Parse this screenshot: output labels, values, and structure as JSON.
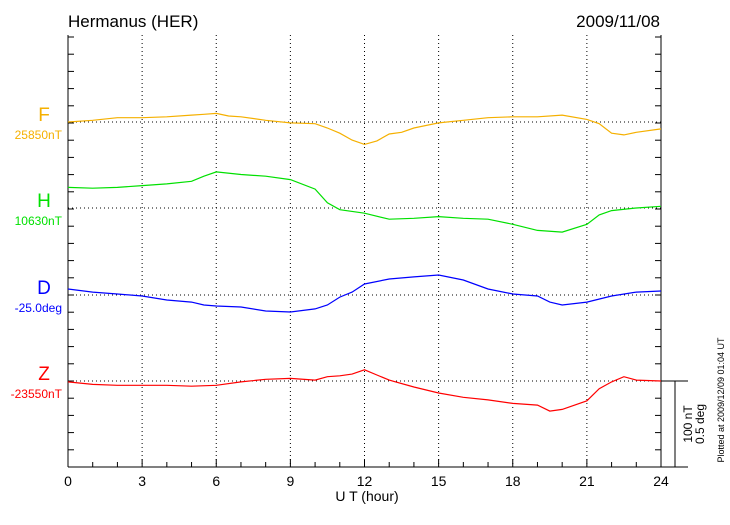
{
  "chart_data": {
    "type": "line",
    "title": "Hermanus (HER)",
    "date": "2009/11/08",
    "xlabel": "U T (hour)",
    "xlim": [
      0,
      24
    ],
    "xticks": [
      "0",
      "3",
      "6",
      "9",
      "12",
      "15",
      "18",
      "21",
      "24"
    ],
    "grid": true,
    "scale_bar": [
      "100 nT",
      "0.5 deg"
    ],
    "footnote": "Plotted at 2009/12/09 01:04 UT",
    "series": [
      {
        "name": "F",
        "baseline_label": "25850nT",
        "baseline": 25850,
        "unit": "nT",
        "color": "#f5b000",
        "x": [
          0,
          1,
          2,
          3,
          4,
          5,
          5.5,
          6,
          6.5,
          7,
          8,
          9,
          10,
          10.5,
          11,
          11.5,
          12,
          12.5,
          13,
          13.5,
          14,
          15,
          16,
          17,
          18,
          19,
          20,
          21,
          21.5,
          22,
          22.5,
          23,
          24
        ],
        "y": [
          25850,
          25852,
          25855,
          25855,
          25856,
          25858,
          25859,
          25860,
          25857,
          25856,
          25852,
          25849,
          25848,
          25843,
          25837,
          25829,
          25824,
          25828,
          25836,
          25838,
          25843,
          25849,
          25852,
          25855,
          25856,
          25856,
          25858,
          25853,
          25848,
          25837,
          25835,
          25838,
          25842
        ]
      },
      {
        "name": "H",
        "baseline_label": "10630nT",
        "baseline": 10630,
        "unit": "nT",
        "color": "#00e000",
        "x": [
          0,
          1,
          2,
          3,
          4,
          5,
          5.5,
          6,
          7,
          8,
          9,
          10,
          10.5,
          11,
          12,
          13,
          14,
          15,
          16,
          17,
          18,
          19,
          20,
          21,
          21.5,
          22,
          23,
          24
        ],
        "y": [
          10654,
          10653,
          10654,
          10656,
          10658,
          10661,
          10667,
          10672,
          10669,
          10667,
          10663,
          10652,
          10636,
          10628,
          10624,
          10617,
          10618,
          10620,
          10618,
          10617,
          10611,
          10604,
          10602,
          10611,
          10622,
          10627,
          10630,
          10632
        ]
      },
      {
        "name": "D",
        "baseline_label": "-25.0deg",
        "baseline": -25.0,
        "unit": "deg",
        "color": "#0000ff",
        "x": [
          0,
          1,
          2,
          3,
          4,
          5,
          5.5,
          6,
          7,
          8,
          9,
          10,
          10.5,
          11,
          11.5,
          12,
          13,
          14,
          15,
          16,
          17,
          18,
          19,
          19.5,
          20,
          21,
          22,
          23,
          24
        ],
        "y": [
          -24.965,
          -24.983,
          -24.994,
          -25.006,
          -25.029,
          -25.041,
          -25.058,
          -25.064,
          -25.07,
          -25.093,
          -25.099,
          -25.081,
          -25.058,
          -25.012,
          -24.983,
          -24.936,
          -24.907,
          -24.895,
          -24.884,
          -24.913,
          -24.965,
          -24.994,
          -25.006,
          -25.041,
          -25.058,
          -25.041,
          -25.006,
          -24.983,
          -24.977
        ]
      },
      {
        "name": "Z",
        "baseline_label": "-23550nT",
        "baseline": -23550,
        "unit": "nT",
        "color": "#ff0000",
        "x": [
          0,
          1,
          2,
          3,
          4,
          5,
          6,
          7,
          8,
          9,
          10,
          10.5,
          11,
          11.5,
          12,
          12.5,
          13,
          14,
          15,
          16,
          17,
          18,
          19,
          19.5,
          20,
          21,
          21.5,
          22,
          22.5,
          23,
          24
        ],
        "y": [
          -23551,
          -23554,
          -23555,
          -23555,
          -23555,
          -23556,
          -23555,
          -23551,
          -23548,
          -23547,
          -23549,
          -23545,
          -23544,
          -23542,
          -23537,
          -23543,
          -23549,
          -23557,
          -23564,
          -23569,
          -23572,
          -23576,
          -23578,
          -23585,
          -23583,
          -23573,
          -23559,
          -23551,
          -23545,
          -23549,
          -23550
        ]
      }
    ]
  }
}
